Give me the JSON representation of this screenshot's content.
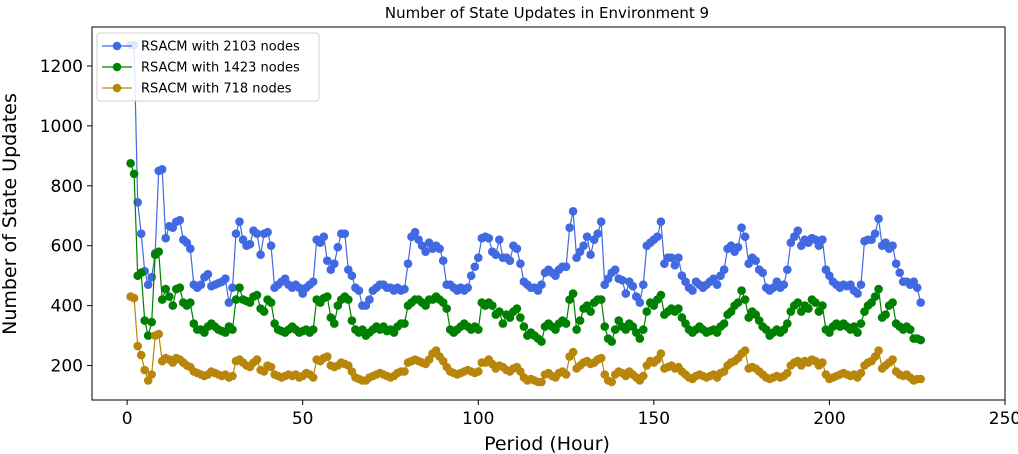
{
  "chart_data": {
    "type": "line",
    "title": "Number of State Updates in Environment 9",
    "xlabel": "Period (Hour)",
    "ylabel": "Number of State Updates",
    "xlim": [
      -10,
      250
    ],
    "ylim": [
      85,
      1330
    ],
    "xticks": [
      0,
      50,
      100,
      150,
      200,
      250
    ],
    "yticks": [
      200,
      400,
      600,
      800,
      1000,
      1200
    ],
    "grid": false,
    "legend_position": "top-left",
    "x_start": 1,
    "series": [
      {
        "name": "RSACM with 2103 nodes",
        "color": "#4169e1",
        "values": [
          1270,
          1270,
          745,
          640,
          515,
          470,
          495,
          575,
          850,
          855,
          625,
          665,
          660,
          680,
          685,
          620,
          610,
          590,
          470,
          460,
          470,
          495,
          505,
          465,
          470,
          475,
          480,
          490,
          410,
          460,
          640,
          680,
          620,
          600,
          605,
          650,
          640,
          570,
          640,
          645,
          600,
          460,
          470,
          480,
          490,
          470,
          460,
          470,
          460,
          440,
          460,
          470,
          480,
          620,
          610,
          630,
          550,
          520,
          540,
          595,
          640,
          640,
          520,
          500,
          460,
          450,
          400,
          400,
          420,
          450,
          460,
          470,
          470,
          460,
          460,
          450,
          460,
          450,
          455,
          540,
          630,
          645,
          620,
          600,
          580,
          610,
          590,
          600,
          590,
          550,
          470,
          470,
          460,
          450,
          460,
          450,
          460,
          500,
          530,
          560,
          625,
          630,
          625,
          580,
          570,
          620,
          560,
          560,
          550,
          600,
          590,
          540,
          480,
          470,
          460,
          460,
          450,
          470,
          510,
          520,
          510,
          500,
          520,
          530,
          530,
          660,
          715,
          560,
          580,
          600,
          630,
          570,
          620,
          640,
          680,
          470,
          490,
          510,
          520,
          490,
          485,
          440,
          480,
          465,
          430,
          410,
          470,
          600,
          610,
          620,
          630,
          680,
          540,
          560,
          560,
          535,
          560,
          500,
          480,
          460,
          450,
          480,
          470,
          460,
          470,
          480,
          490,
          470,
          500,
          520,
          590,
          600,
          580,
          595,
          660,
          630,
          540,
          560,
          550,
          520,
          510,
          460,
          450,
          460,
          480,
          460,
          470,
          520,
          610,
          630,
          650,
          600,
          620,
          610,
          625,
          620,
          600,
          620,
          520,
          500,
          480,
          470,
          460,
          470,
          465,
          470,
          450,
          440,
          470,
          615,
          620,
          620,
          640,
          690,
          600,
          610,
          590,
          600,
          540,
          510,
          480,
          480,
          470,
          480,
          460,
          410
        ]
      },
      {
        "name": "RSACM with 1423 nodes",
        "color": "#008000",
        "values": [
          875,
          840,
          500,
          510,
          350,
          300,
          345,
          570,
          580,
          420,
          455,
          430,
          400,
          455,
          460,
          410,
          400,
          410,
          340,
          320,
          320,
          310,
          330,
          340,
          330,
          320,
          315,
          310,
          330,
          320,
          420,
          460,
          420,
          415,
          410,
          430,
          435,
          390,
          380,
          420,
          410,
          340,
          320,
          315,
          310,
          320,
          330,
          320,
          310,
          315,
          320,
          310,
          320,
          420,
          410,
          425,
          430,
          360,
          340,
          400,
          420,
          430,
          420,
          350,
          320,
          310,
          320,
          300,
          310,
          320,
          330,
          320,
          330,
          315,
          320,
          310,
          330,
          340,
          340,
          400,
          410,
          420,
          420,
          410,
          400,
          420,
          420,
          430,
          420,
          410,
          390,
          320,
          310,
          320,
          330,
          340,
          330,
          320,
          330,
          320,
          410,
          400,
          410,
          400,
          370,
          380,
          340,
          370,
          360,
          380,
          390,
          360,
          330,
          300,
          310,
          300,
          290,
          280,
          330,
          340,
          330,
          320,
          340,
          350,
          340,
          420,
          440,
          320,
          350,
          390,
          400,
          380,
          410,
          420,
          420,
          330,
          290,
          280,
          320,
          350,
          330,
          320,
          340,
          330,
          310,
          290,
          320,
          380,
          410,
          400,
          420,
          435,
          370,
          380,
          390,
          380,
          390,
          360,
          340,
          320,
          310,
          320,
          330,
          320,
          310,
          315,
          320,
          310,
          330,
          340,
          370,
          380,
          400,
          410,
          450,
          420,
          360,
          380,
          370,
          350,
          330,
          320,
          300,
          310,
          320,
          310,
          320,
          340,
          380,
          400,
          410,
          380,
          400,
          390,
          420,
          410,
          380,
          400,
          320,
          310,
          330,
          340,
          330,
          340,
          330,
          320,
          330,
          310,
          340,
          380,
          400,
          410,
          430,
          455,
          360,
          370,
          400,
          410,
          340,
          330,
          320,
          330,
          320,
          290,
          290,
          285
        ]
      },
      {
        "name": "RSACM with 718 nodes",
        "color": "#b8860b",
        "values": [
          430,
          425,
          265,
          235,
          185,
          150,
          170,
          300,
          305,
          215,
          225,
          220,
          210,
          225,
          220,
          210,
          200,
          195,
          180,
          175,
          170,
          165,
          170,
          180,
          175,
          170,
          165,
          170,
          160,
          165,
          215,
          220,
          210,
          200,
          195,
          210,
          220,
          185,
          180,
          200,
          195,
          170,
          165,
          160,
          165,
          170,
          165,
          170,
          160,
          165,
          175,
          170,
          160,
          220,
          215,
          225,
          230,
          200,
          195,
          200,
          210,
          205,
          200,
          180,
          160,
          155,
          150,
          150,
          160,
          165,
          170,
          175,
          170,
          165,
          160,
          165,
          175,
          180,
          180,
          210,
          215,
          220,
          215,
          210,
          205,
          220,
          240,
          250,
          230,
          215,
          195,
          180,
          175,
          170,
          175,
          180,
          185,
          180,
          175,
          180,
          210,
          210,
          220,
          205,
          190,
          200,
          195,
          185,
          180,
          190,
          195,
          180,
          160,
          150,
          155,
          150,
          145,
          145,
          170,
          175,
          165,
          160,
          175,
          180,
          170,
          230,
          245,
          190,
          200,
          210,
          215,
          205,
          210,
          220,
          225,
          170,
          150,
          145,
          170,
          180,
          175,
          165,
          180,
          170,
          160,
          150,
          165,
          200,
          215,
          210,
          220,
          240,
          190,
          195,
          200,
          190,
          195,
          180,
          170,
          160,
          155,
          165,
          170,
          165,
          160,
          165,
          170,
          160,
          175,
          180,
          200,
          210,
          215,
          225,
          240,
          250,
          190,
          195,
          190,
          180,
          170,
          160,
          155,
          160,
          165,
          160,
          165,
          175,
          200,
          210,
          215,
          200,
          215,
          210,
          220,
          215,
          200,
          210,
          170,
          155,
          160,
          165,
          170,
          175,
          170,
          165,
          170,
          160,
          175,
          200,
          210,
          215,
          230,
          250,
          190,
          200,
          210,
          220,
          180,
          170,
          165,
          170,
          160,
          150,
          155,
          155
        ]
      }
    ]
  }
}
